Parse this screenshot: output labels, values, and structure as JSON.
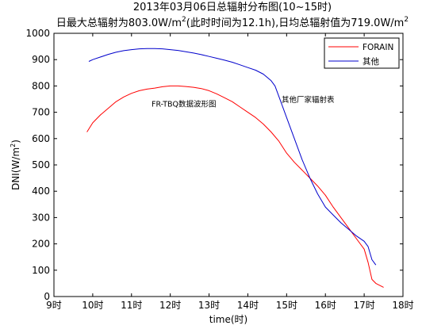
{
  "chart_data": {
    "type": "line",
    "title": "2013年03月06日总辐射分布图(10~15时)",
    "subtitle_parts": {
      "p1": "日最大总辐射为803.0W/m",
      "sup1": "2",
      "p2": "(此时时间为12.1h),日均总辐射值为719.0W/m",
      "sup2": "2"
    },
    "xlabel": "time(时)",
    "ylabel_parts": {
      "main": "DNI(W/m",
      "sup": "2",
      "end": ")"
    },
    "xlim": [
      9,
      18
    ],
    "ylim": [
      0,
      1000
    ],
    "x_ticks": [
      9,
      10,
      11,
      12,
      13,
      14,
      15,
      16,
      17,
      18
    ],
    "x_tick_labels": [
      "9时",
      "10时",
      "11时",
      "12时",
      "13时",
      "14时",
      "15时",
      "16时",
      "17时",
      "18时"
    ],
    "y_ticks": [
      0,
      100,
      200,
      300,
      400,
      500,
      600,
      700,
      800,
      900,
      1000
    ],
    "y_tick_labels": [
      "0",
      "100",
      "200",
      "300",
      "400",
      "500",
      "600",
      "700",
      "800",
      "900",
      "1000"
    ],
    "legend_position": "top-right",
    "series": [
      {
        "name": "FORAIN",
        "color": "#ff0000",
        "x": [
          9.85,
          10.0,
          10.2,
          10.4,
          10.6,
          10.8,
          11.0,
          11.2,
          11.4,
          11.6,
          11.8,
          12.0,
          12.2,
          12.4,
          12.6,
          12.8,
          13.0,
          13.2,
          13.4,
          13.6,
          13.8,
          14.0,
          14.2,
          14.4,
          14.6,
          14.8,
          15.0,
          15.2,
          15.4,
          15.6,
          15.8,
          16.0,
          16.2,
          16.4,
          16.6,
          16.8,
          17.0,
          17.1,
          17.2,
          17.3,
          17.5
        ],
        "y": [
          625,
          660,
          690,
          715,
          740,
          758,
          772,
          782,
          788,
          792,
          797,
          800,
          800,
          798,
          795,
          790,
          782,
          770,
          755,
          740,
          720,
          700,
          680,
          655,
          625,
          590,
          545,
          510,
          480,
          450,
          420,
          385,
          340,
          300,
          260,
          220,
          180,
          130,
          65,
          50,
          35
        ]
      },
      {
        "name": "其他",
        "color": "#0000cc",
        "x": [
          9.9,
          10.0,
          10.2,
          10.4,
          10.6,
          10.8,
          11.0,
          11.2,
          11.4,
          11.6,
          11.8,
          12.0,
          12.2,
          12.4,
          12.6,
          12.8,
          13.0,
          13.2,
          13.4,
          13.6,
          13.8,
          14.0,
          14.2,
          14.4,
          14.6,
          14.7,
          14.8,
          15.0,
          15.2,
          15.4,
          15.6,
          15.8,
          16.0,
          16.2,
          16.4,
          16.6,
          16.8,
          17.0,
          17.1,
          17.2,
          17.3
        ],
        "y": [
          893,
          900,
          910,
          920,
          928,
          934,
          938,
          941,
          942,
          942,
          941,
          938,
          935,
          930,
          925,
          919,
          912,
          905,
          898,
          890,
          880,
          870,
          860,
          845,
          820,
          800,
          760,
          680,
          600,
          520,
          450,
          390,
          340,
          310,
          280,
          255,
          230,
          210,
          190,
          140,
          120
        ]
      }
    ],
    "annotations": [
      {
        "text": "FR-TBQ数据波形图",
        "x": 12.35,
        "y": 722
      },
      {
        "text": "其他厂家辐射表",
        "x": 15.55,
        "y": 738
      }
    ]
  }
}
